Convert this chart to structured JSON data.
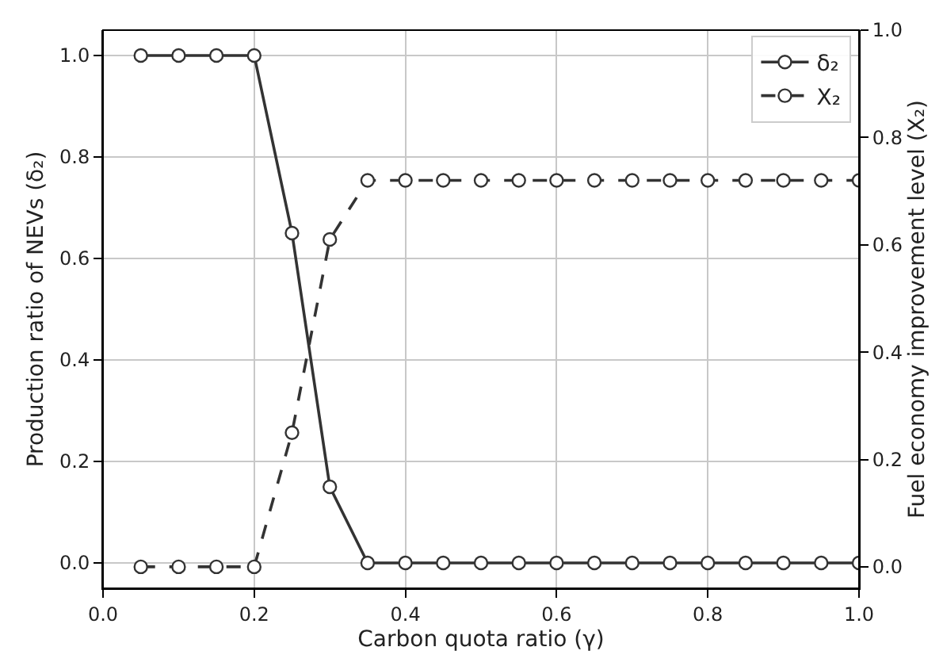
{
  "chart_data": {
    "type": "line",
    "xlabel": "Carbon quota ratio (γ)",
    "ylabel": "Production ratio of NEVs (δ₂)",
    "y2label": "Fuel economy improvement level (X₂)",
    "x": [
      0.05,
      0.1,
      0.15,
      0.2,
      0.25,
      0.3,
      0.35,
      0.4,
      0.45,
      0.5,
      0.55,
      0.6,
      0.65,
      0.7,
      0.75,
      0.8,
      0.85,
      0.9,
      0.95,
      1.0
    ],
    "series": [
      {
        "name": "δ₂",
        "color": "#333333",
        "line_style": "solid",
        "values": [
          1,
          1,
          1,
          1,
          0.65,
          0.15,
          0,
          0,
          0,
          0,
          0,
          0,
          0,
          0,
          0,
          0,
          0,
          0,
          0,
          0
        ]
      },
      {
        "name": "X₂",
        "color": "#333333",
        "line_style": "dashed",
        "axis": "y2",
        "values": [
          0,
          0,
          0,
          0,
          0.25,
          0.61,
          0.72,
          0.72,
          0.72,
          0.72,
          0.72,
          0.72,
          0.72,
          0.72,
          0.72,
          0.72,
          0.72,
          0.72,
          0.72,
          0.72
        ]
      }
    ],
    "xlim": [
      0.0,
      1.0
    ],
    "xticks": [
      {
        "value": 0,
        "label": "0.0"
      },
      0.2,
      0.4,
      0.6,
      0.8,
      {
        "value": 1,
        "label": "1.0"
      }
    ],
    "ylim": [
      -0.05,
      1.05
    ],
    "yticks": [
      {
        "value": 0,
        "label": "0.0"
      },
      0.2,
      0.4,
      0.6,
      0.8,
      {
        "value": 1,
        "label": "1.0"
      }
    ],
    "y2lim": [
      -0.04,
      1.0
    ],
    "y2ticks": [
      {
        "value": 0,
        "label": "0.0"
      },
      0.2,
      0.4,
      0.6,
      0.8,
      {
        "value": 1,
        "label": "1.0"
      }
    ],
    "marker": "circle",
    "grid": true,
    "legend": "top right"
  }
}
